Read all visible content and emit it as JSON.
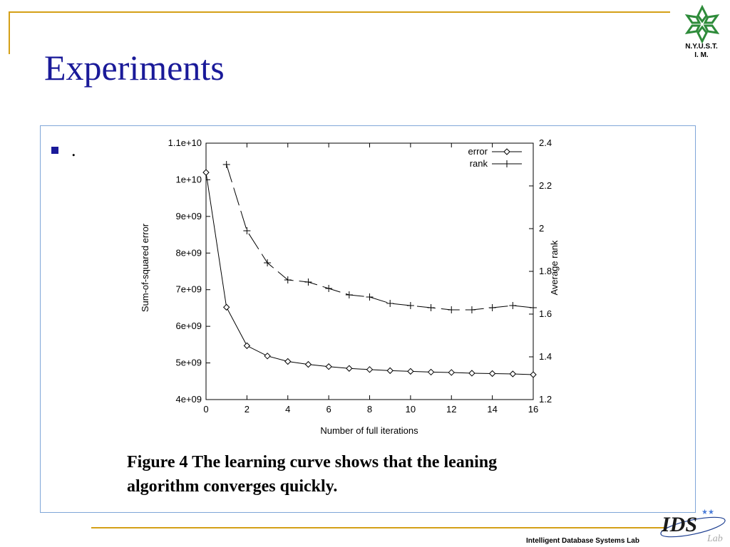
{
  "slide": {
    "title": "Experiments",
    "bullet": ".",
    "logo_text_line1": "N.Y.U.S.T.",
    "logo_text_line2": "I. M.",
    "caption_line1": "Figure 4  The learning curve shows that the leaning",
    "caption_line2": "algorithm converges quickly.",
    "footer": "Intelligent Database Systems Lab",
    "ids_logo_text": "IDS",
    "ids_logo_sub": "Lab"
  },
  "colors": {
    "title": "#1a1a99",
    "rule": "#d4a017",
    "box_border": "#7fa6d8",
    "logo_green": "#2e8b3a"
  },
  "chart_data": {
    "type": "line",
    "xlabel": "Number of full iterations",
    "ylabel_left": "Sum-of-squared error",
    "ylabel_right": "Average rank",
    "xlim": [
      0,
      16
    ],
    "ylim_left": [
      4000000000.0,
      11000000000.0
    ],
    "ylim_right": [
      1.2,
      2.4
    ],
    "x_ticks": [
      "0",
      "2",
      "4",
      "6",
      "8",
      "10",
      "12",
      "14",
      "16"
    ],
    "y_left_ticks": [
      "4e+09",
      "5e+09",
      "6e+09",
      "7e+09",
      "8e+09",
      "9e+09",
      "1e+10",
      "1.1e+10"
    ],
    "y_right_ticks": [
      "1.2",
      "1.4",
      "1.6",
      "1.8",
      "2",
      "2.2",
      "2.4"
    ],
    "legend_position": "top-right",
    "series": [
      {
        "name": "error",
        "axis": "left",
        "marker": "diamond",
        "x": [
          0,
          1,
          2,
          3,
          4,
          5,
          6,
          7,
          8,
          9,
          10,
          11,
          12,
          13,
          14,
          15,
          16
        ],
        "values": [
          10200000000.0,
          6520000000.0,
          5470000000.0,
          5190000000.0,
          5040000000.0,
          4960000000.0,
          4900000000.0,
          4850000000.0,
          4820000000.0,
          4790000000.0,
          4770000000.0,
          4750000000.0,
          4740000000.0,
          4720000000.0,
          4710000000.0,
          4700000000.0,
          4680000000.0
        ]
      },
      {
        "name": "rank",
        "axis": "right",
        "marker": "plus",
        "x": [
          1,
          2,
          3,
          4,
          5,
          6,
          7,
          8,
          9,
          10,
          11,
          12,
          13,
          14,
          15,
          16
        ],
        "values": [
          2.3,
          1.99,
          1.84,
          1.76,
          1.75,
          1.72,
          1.69,
          1.68,
          1.65,
          1.64,
          1.63,
          1.62,
          1.62,
          1.63,
          1.64,
          1.63
        ]
      }
    ]
  }
}
